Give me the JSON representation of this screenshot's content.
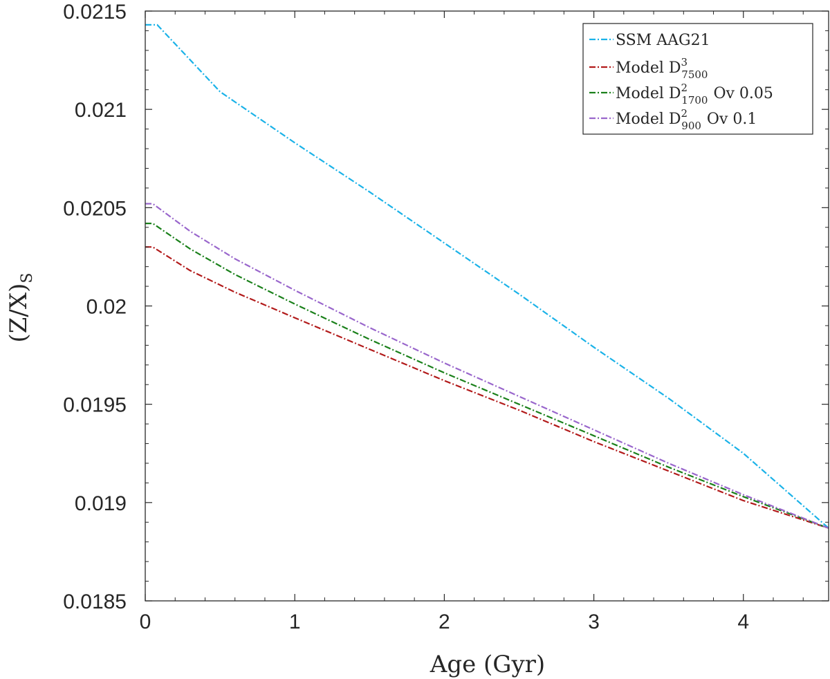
{
  "chart_data": {
    "type": "line",
    "title": "",
    "xlabel": "Age (Gyr)",
    "ylabel": "(Z/X)",
    "ylabel_subscript": "S",
    "xlim": [
      0,
      4.57
    ],
    "ylim": [
      0.0185,
      0.0215
    ],
    "x_ticks": [
      0,
      1,
      2,
      3,
      4
    ],
    "x_tick_labels": [
      "0",
      "1",
      "2",
      "3",
      "4"
    ],
    "y_ticks": [
      0.0185,
      0.019,
      0.0195,
      0.02,
      0.0205,
      0.021,
      0.0215
    ],
    "y_tick_labels": [
      "0.0185",
      "0.019",
      "0.0195",
      "0.02",
      "0.0205",
      "0.021",
      "0.0215"
    ],
    "grid": false,
    "legend_position": "top-right",
    "series": [
      {
        "name": "SSM AAG21",
        "legend": {
          "base": "SSM AAG21",
          "sup": "",
          "sub": "",
          "suffix": ""
        },
        "color": "#1ab2e8",
        "x": [
          0,
          0.08,
          0.5,
          1.0,
          1.5,
          2.0,
          2.5,
          3.0,
          3.5,
          4.0,
          4.57
        ],
        "y": [
          0.02143,
          0.02143,
          0.02109,
          0.02083,
          0.02058,
          0.02032,
          0.02006,
          0.01979,
          0.01953,
          0.01925,
          0.01887
        ]
      },
      {
        "name": "Model D3 7500",
        "legend": {
          "base": "Model D",
          "sup": "3",
          "sub": "7500",
          "suffix": ""
        },
        "color": "#b21a1a",
        "x": [
          0,
          0.05,
          0.3,
          0.6,
          1.0,
          1.5,
          2.0,
          2.5,
          3.0,
          3.5,
          4.0,
          4.57
        ],
        "y": [
          0.0203,
          0.0203,
          0.02018,
          0.02007,
          0.01994,
          0.01978,
          0.01962,
          0.01947,
          0.01931,
          0.01916,
          0.01901,
          0.01887
        ]
      },
      {
        "name": "Model D2 1700 Ov 0.05",
        "legend": {
          "base": "Model D",
          "sup": "2",
          "sub": "1700",
          "suffix": "Ov 0.05"
        },
        "color": "#1a801a",
        "x": [
          0,
          0.05,
          0.3,
          0.6,
          1.0,
          1.5,
          2.0,
          2.5,
          3.0,
          3.5,
          4.0,
          4.57
        ],
        "y": [
          0.02042,
          0.02042,
          0.02029,
          0.02016,
          0.02001,
          0.01983,
          0.01966,
          0.0195,
          0.01934,
          0.01918,
          0.01903,
          0.01887
        ]
      },
      {
        "name": "Model D2 900 Ov 0.1",
        "legend": {
          "base": "Model D",
          "sup": "2",
          "sub": "900",
          "suffix": "Ov 0.1"
        },
        "color": "#9966cc",
        "x": [
          0,
          0.05,
          0.3,
          0.6,
          1.0,
          1.5,
          2.0,
          2.5,
          3.0,
          3.5,
          4.0,
          4.57
        ],
        "y": [
          0.02052,
          0.02052,
          0.02038,
          0.02024,
          0.02008,
          0.01989,
          0.01971,
          0.01954,
          0.01937,
          0.0192,
          0.01904,
          0.01887
        ]
      }
    ]
  }
}
